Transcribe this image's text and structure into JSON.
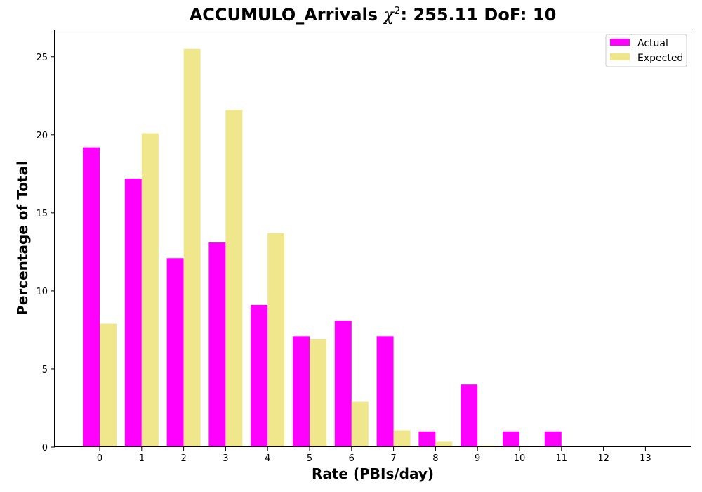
{
  "chart_data": {
    "type": "bar",
    "title": {
      "name": "ACCUMULO_Arrivals",
      "chi_symbol": "χ",
      "chi_power": "2",
      "stat": ": 255.11 DoF: 10"
    },
    "xlabel": "Rate (PBIs/day)",
    "ylabel": "Percentage of Total",
    "categories": [
      "0",
      "1",
      "2",
      "3",
      "4",
      "5",
      "6",
      "7",
      "8",
      "9",
      "10",
      "11",
      "12",
      "13"
    ],
    "ylim": [
      0,
      26.7
    ],
    "yticks": [
      0,
      5,
      10,
      15,
      20,
      25
    ],
    "grid": false,
    "legend_position": "top-right",
    "series": [
      {
        "name": "Actual",
        "color": "#ff00ff",
        "values": [
          19.2,
          17.2,
          12.1,
          13.1,
          9.1,
          7.1,
          8.1,
          7.1,
          1.0,
          4.0,
          1.0,
          1.0,
          0,
          0
        ]
      },
      {
        "name": "Expected",
        "color": "#f0e68c",
        "values": [
          7.9,
          20.1,
          25.5,
          21.6,
          13.7,
          6.9,
          2.9,
          1.06,
          0.34,
          0.1,
          0.03,
          0.01,
          0,
          0
        ]
      }
    ]
  }
}
